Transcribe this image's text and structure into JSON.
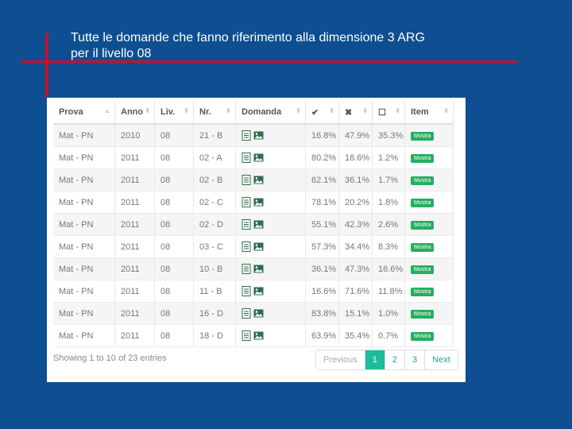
{
  "slide": {
    "title_line1": "Tutte le domande che fanno riferimento alla dimensione 3 ARG",
    "title_line2": "per il livello 08"
  },
  "table": {
    "headers": [
      "Prova",
      "Anno",
      "Liv.",
      "Nr.",
      "Domanda",
      "✔",
      "✖",
      "☐",
      "Item"
    ],
    "rows": [
      {
        "prova": "Mat - PN",
        "anno": "2010",
        "liv": "08",
        "nr": "21 - B",
        "p1": "16.8%",
        "p2": "47.9%",
        "p3": "35.3%",
        "item": "Mostra"
      },
      {
        "prova": "Mat - PN",
        "anno": "2011",
        "liv": "08",
        "nr": "02 - A",
        "p1": "80.2%",
        "p2": "18.6%",
        "p3": "1.2%",
        "item": "Mostra"
      },
      {
        "prova": "Mat - PN",
        "anno": "2011",
        "liv": "08",
        "nr": "02 - B",
        "p1": "62.1%",
        "p2": "36.1%",
        "p3": "1.7%",
        "item": "Mostra"
      },
      {
        "prova": "Mat - PN",
        "anno": "2011",
        "liv": "08",
        "nr": "02 - C",
        "p1": "78.1%",
        "p2": "20.2%",
        "p3": "1.8%",
        "item": "Mostra"
      },
      {
        "prova": "Mat - PN",
        "anno": "2011",
        "liv": "08",
        "nr": "02 - D",
        "p1": "55.1%",
        "p2": "42.3%",
        "p3": "2.6%",
        "item": "Mostra"
      },
      {
        "prova": "Mat - PN",
        "anno": "2011",
        "liv": "08",
        "nr": "03 - C",
        "p1": "57.3%",
        "p2": "34.4%",
        "p3": "8.3%",
        "item": "Mostra"
      },
      {
        "prova": "Mat - PN",
        "anno": "2011",
        "liv": "08",
        "nr": "10 - B",
        "p1": "36.1%",
        "p2": "47.3%",
        "p3": "16.6%",
        "item": "Mostra"
      },
      {
        "prova": "Mat - PN",
        "anno": "2011",
        "liv": "08",
        "nr": "11 - B",
        "p1": "16.6%",
        "p2": "71.6%",
        "p3": "11.8%",
        "item": "Mostra"
      },
      {
        "prova": "Mat - PN",
        "anno": "2011",
        "liv": "08",
        "nr": "16 - D",
        "p1": "83.8%",
        "p2": "15.1%",
        "p3": "1.0%",
        "item": "Mostra"
      },
      {
        "prova": "Mat - PN",
        "anno": "2011",
        "liv": "08",
        "nr": "18 - D",
        "p1": "63.9%",
        "p2": "35.4%",
        "p3": "0.7%",
        "item": "Mostra"
      }
    ]
  },
  "footer": {
    "info": "Showing 1 to 10 of 23 entries",
    "pagination": [
      "Previous",
      "1",
      "2",
      "3",
      "Next"
    ],
    "active_page": "1"
  },
  "colors": {
    "background": "#0d4f91",
    "accent_line": "#c8102e",
    "button_green": "#27ae60",
    "active_page": "#1abc9c"
  }
}
